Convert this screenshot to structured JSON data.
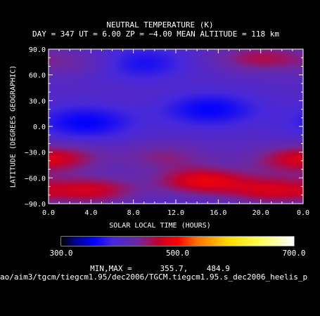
{
  "chart_data": {
    "type": "heatmap",
    "title": "NEUTRAL TEMPERATURE (K)",
    "subtitle": "DAY = 347   UT =   6.00   ZP =   −4.00   MEAN ALTITUDE = 118 km",
    "xlabel": "SOLAR LOCAL TIME (HOURS)",
    "ylabel": "LATITUDE (DEGREES GEOGRAPHIC)",
    "xlim": [
      0,
      24
    ],
    "ylim": [
      -90,
      90
    ],
    "x_ticks": [
      "0.0",
      "4.0",
      "8.0",
      "12.0",
      "16.0",
      "20.0",
      "0.0"
    ],
    "y_ticks": [
      "90.0",
      "60.0",
      "30.0",
      "0.0",
      "−30.0",
      "−60.0",
      "−90.0"
    ],
    "y_tick_values": [
      90,
      60,
      30,
      0,
      -30,
      -60,
      -90
    ],
    "x_tick_values": [
      0,
      4,
      8,
      12,
      16,
      20,
      24
    ],
    "colorbar": {
      "min": 300,
      "max": 700,
      "labels": [
        "300.0",
        "500.0",
        "700.0"
      ]
    },
    "min_max_label": "MIN,MAX =",
    "min_value": "355.7,",
    "max_value": "484.9",
    "features": [
      {
        "x": 3.5,
        "y": 5,
        "value": 357
      },
      {
        "x": 15.2,
        "y": 20,
        "value": 358
      },
      {
        "x": 8.5,
        "y": 74,
        "value": 365
      },
      {
        "x": 14.5,
        "y": -63,
        "value": 484
      },
      {
        "x": 4.0,
        "y": -74,
        "value": 470
      },
      {
        "x": 21.0,
        "y": -74,
        "value": 470
      },
      {
        "x": 20.0,
        "y": 80,
        "value": 455
      },
      {
        "x": 3.0,
        "y": 75,
        "value": 430
      },
      {
        "x": 11.0,
        "y": -35,
        "value": 440
      },
      {
        "x": 1.0,
        "y": -35,
        "value": 445
      },
      {
        "x": 23.0,
        "y": -40,
        "value": 445
      }
    ]
  },
  "file_path": "ao/aim3/tgcm/tiegcm1.95/dec2006/TGCM.tiegcm1.95.s_dec2006_heelis_p"
}
